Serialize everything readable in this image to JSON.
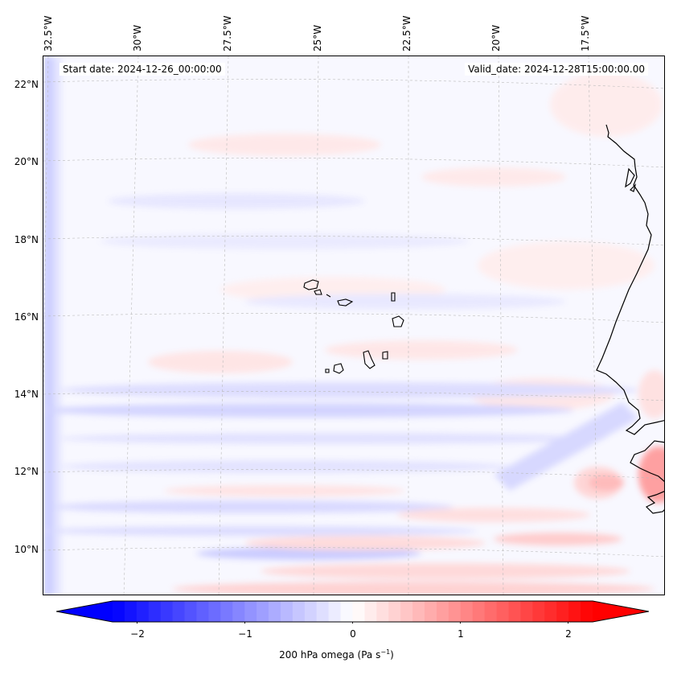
{
  "map": {
    "variable": "200 hPa omega",
    "units_prefix": "(Pa s",
    "units_exp": "−1",
    "units_suffix": ")",
    "start_label": "Start date: 2024-12-26_00:00:00",
    "valid_label": "Valid_date: 2024-12-28T15:00:00.00",
    "lon_labels": [
      "32.5°W",
      "30°W",
      "27.5°W",
      "25°W",
      "22.5°W",
      "20°W",
      "17.5°W"
    ],
    "lat_labels": [
      "22°N",
      "20°N",
      "18°N",
      "16°N",
      "14°N",
      "12°N",
      "10°N"
    ],
    "coast_color": "#000000",
    "grid_color": "#bbbbbb"
  },
  "colorbar": {
    "ticks": [
      "−2",
      "−1",
      "0",
      "1",
      "2"
    ],
    "neg_color": "#0000ff",
    "mid_color": "#ffffff",
    "pos_color": "#ff0000",
    "levels": 40
  }
}
